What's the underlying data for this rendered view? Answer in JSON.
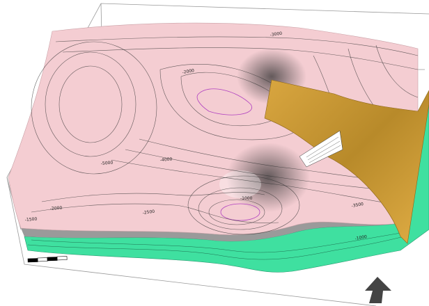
{
  "contour_labels": [
    "-3000",
    "-2000",
    "-5000",
    "-4000",
    "-1000",
    "-2000",
    "-1500",
    "-2500",
    "-3500",
    "-1000"
  ]
}
